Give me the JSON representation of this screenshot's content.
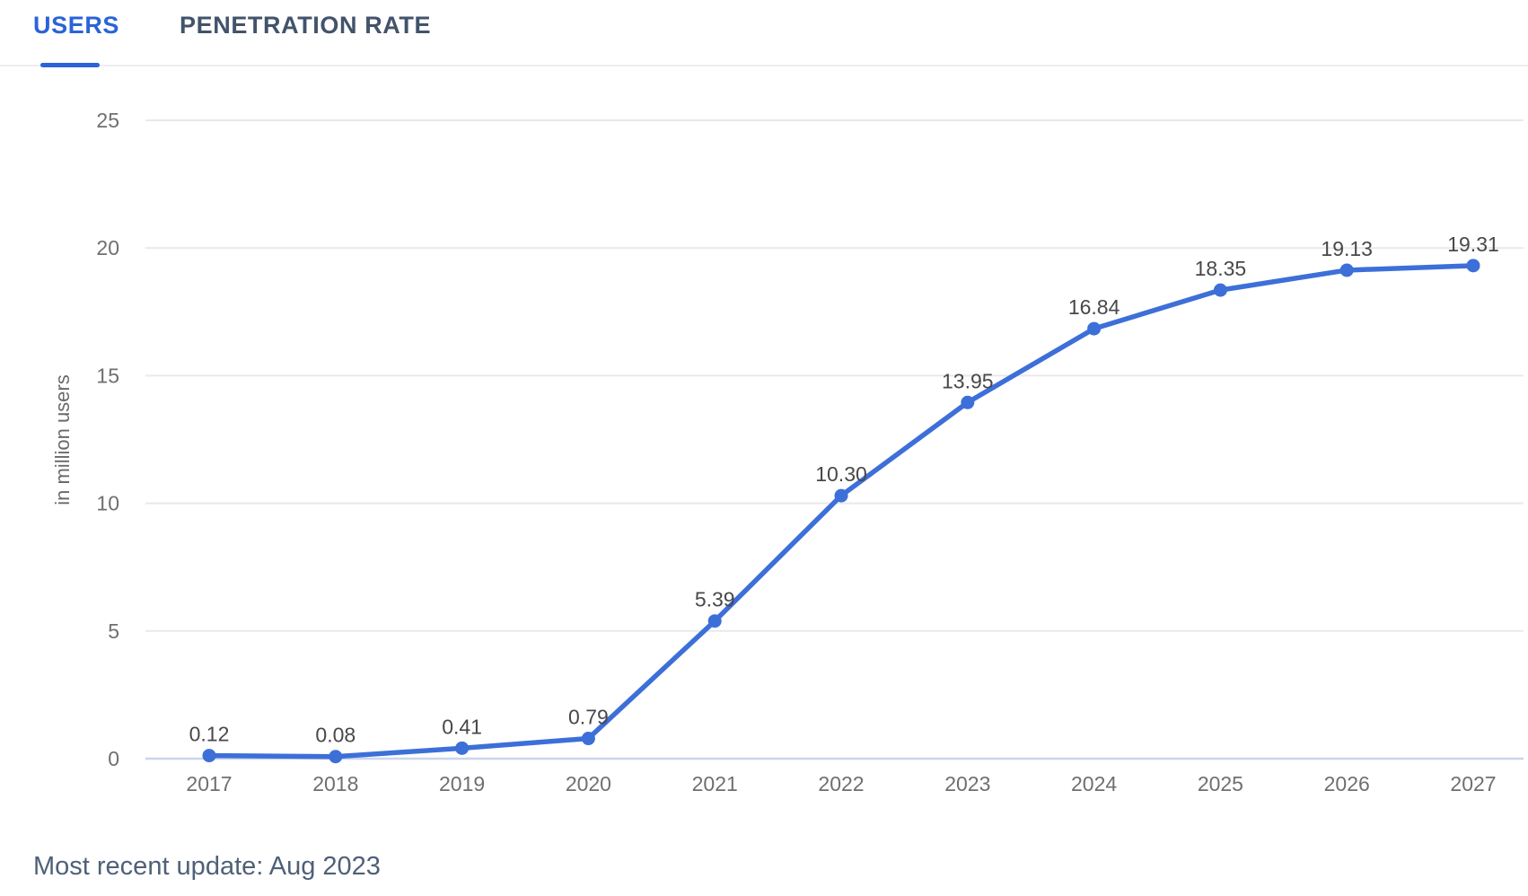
{
  "tabs": [
    {
      "label": "USERS",
      "active": true
    },
    {
      "label": "PENETRATION RATE",
      "active": false
    }
  ],
  "colors": {
    "accent": "#2b63d8",
    "line": "#3d6fd9",
    "tab_inactive": "#42536b",
    "grid": "#e9e9e9",
    "zero_line": "#c9d5ec",
    "tick_text": "#6f6f6f",
    "data_label_text": "#484848",
    "footer_text": "#4f6078"
  },
  "chart_data": {
    "type": "line",
    "title": "",
    "x": [
      2017,
      2018,
      2019,
      2020,
      2021,
      2022,
      2023,
      2024,
      2025,
      2026,
      2027
    ],
    "values": [
      0.12,
      0.08,
      0.41,
      0.79,
      5.39,
      10.3,
      13.95,
      16.84,
      18.35,
      19.13,
      19.31
    ],
    "point_labels": [
      "0.12",
      "0.08",
      "0.41",
      "0.79",
      "5.39",
      "10.30",
      "13.95",
      "16.84",
      "18.35",
      "19.13",
      "19.31"
    ],
    "xlabel": "",
    "ylabel": "in million users",
    "yticks": [
      0,
      5,
      10,
      15,
      20,
      25
    ],
    "ylim": [
      0,
      26.9
    ],
    "grid": true,
    "legend": false,
    "line_color": "#3d6fd9",
    "marker": "circle"
  },
  "footer": {
    "update_text": "Most recent update: Aug 2023"
  }
}
